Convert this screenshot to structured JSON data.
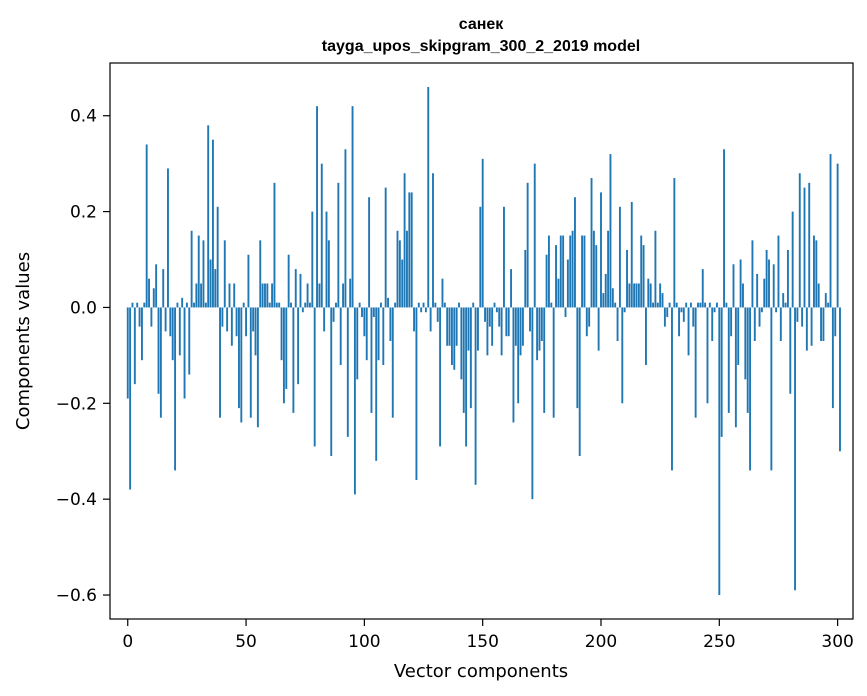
{
  "chart_data": {
    "type": "bar",
    "title": "санек",
    "subtitle": "tayga_upos_skipgram_300_2_2019 model",
    "xlabel": "Vector components",
    "ylabel": "Components values",
    "xlim": [
      -7.5,
      306.5
    ],
    "ylim": [
      -0.65,
      0.51
    ],
    "xticks": [
      0,
      50,
      100,
      150,
      200,
      250,
      300
    ],
    "xtick_labels": [
      "0",
      "50",
      "100",
      "150",
      "200",
      "250",
      "300"
    ],
    "yticks": [
      -0.6,
      -0.4,
      -0.2,
      0.0,
      0.2,
      0.4
    ],
    "ytick_labels": [
      "−0.6",
      "−0.4",
      "−0.2",
      "0.0",
      "0.2",
      "0.4"
    ],
    "bar_color": "#1f77b4",
    "values": [
      -0.19,
      -0.38,
      0.01,
      -0.16,
      0.01,
      -0.04,
      -0.11,
      0.01,
      0.34,
      0.06,
      -0.04,
      0.04,
      0.09,
      -0.18,
      -0.23,
      0.08,
      -0.05,
      0.29,
      -0.06,
      -0.11,
      -0.34,
      0.01,
      -0.1,
      0.02,
      -0.19,
      0.01,
      -0.14,
      0.16,
      0.01,
      0.05,
      0.15,
      0.05,
      0.14,
      0.01,
      0.38,
      0.1,
      0.35,
      0.08,
      0.21,
      -0.23,
      -0.04,
      0.14,
      -0.05,
      0.05,
      -0.08,
      0.05,
      -0.06,
      -0.21,
      -0.24,
      0.01,
      -0.06,
      0.11,
      -0.23,
      -0.05,
      -0.1,
      -0.25,
      0.14,
      0.05,
      0.05,
      0.05,
      0.01,
      0.05,
      0.26,
      0.01,
      0.01,
      -0.11,
      -0.2,
      -0.17,
      0.11,
      0.01,
      -0.22,
      0.08,
      -0.16,
      0.07,
      -0.01,
      0.01,
      0.05,
      0.01,
      0.2,
      -0.29,
      0.42,
      0.05,
      0.3,
      -0.05,
      0.2,
      0.14,
      -0.31,
      -0.03,
      0.01,
      0.26,
      -0.12,
      0.05,
      0.33,
      -0.27,
      0.06,
      0.42,
      -0.39,
      -0.15,
      0.01,
      -0.02,
      -0.06,
      -0.11,
      0.23,
      -0.22,
      -0.02,
      -0.32,
      -0.11,
      0.01,
      -0.12,
      0.25,
      0.02,
      -0.07,
      -0.23,
      0.01,
      0.16,
      0.14,
      0.1,
      0.28,
      0.16,
      0.24,
      0.24,
      -0.05,
      -0.36,
      0.01,
      -0.01,
      0.01,
      -0.01,
      0.46,
      -0.05,
      0.28,
      0.01,
      -0.03,
      -0.29,
      0.06,
      0.01,
      -0.08,
      -0.08,
      -0.12,
      -0.13,
      -0.08,
      0.01,
      -0.15,
      -0.22,
      -0.29,
      -0.09,
      -0.21,
      0.01,
      -0.37,
      -0.09,
      0.21,
      0.31,
      -0.03,
      -0.1,
      -0.04,
      -0.08,
      0.01,
      -0.01,
      -0.04,
      -0.1,
      0.21,
      -0.06,
      -0.06,
      0.08,
      -0.24,
      -0.08,
      -0.2,
      -0.1,
      -0.08,
      0.12,
      0.26,
      -0.05,
      -0.4,
      0.3,
      -0.11,
      -0.09,
      -0.07,
      -0.22,
      0.11,
      0.15,
      0.01,
      -0.23,
      0.13,
      0.06,
      0.15,
      0.15,
      -0.02,
      0.1,
      0.15,
      0.16,
      0.23,
      -0.21,
      -0.31,
      0.15,
      0.15,
      -0.06,
      -0.04,
      0.27,
      0.16,
      0.13,
      -0.09,
      0.24,
      0.03,
      0.07,
      0.16,
      0.32,
      0.04,
      0.01,
      -0.07,
      0.21,
      -0.2,
      -0.01,
      0.12,
      0.05,
      0.22,
      0.05,
      0.05,
      0.05,
      0.15,
      0.13,
      -0.12,
      0.06,
      0.05,
      0.01,
      0.16,
      0.01,
      0.05,
      0.03,
      -0.04,
      -0.02,
      0.01,
      -0.34,
      0.27,
      0.01,
      -0.06,
      -0.01,
      -0.03,
      0.01,
      -0.1,
      0.01,
      -0.04,
      -0.23,
      0.01,
      0.01,
      0.08,
      0.01,
      -0.2,
      0.01,
      -0.07,
      -0.01,
      0.01,
      -0.6,
      -0.27,
      0.33,
      0.01,
      -0.22,
      -0.06,
      0.09,
      -0.25,
      -0.12,
      0.1,
      0.05,
      -0.15,
      -0.22,
      -0.34,
      0.14,
      -0.07,
      0.07,
      -0.04,
      -0.01,
      0.06,
      0.12,
      0.1,
      -0.34,
      0.09,
      -0.01,
      0.15,
      -0.07,
      0.03,
      0.01,
      0.12,
      -0.18,
      0.2,
      -0.59,
      -0.03,
      0.28,
      -0.04,
      0.25,
      -0.09,
      0.26,
      -0.08,
      0.15,
      0.14,
      0.05,
      -0.07,
      -0.07,
      0.03,
      0.01,
      0.32,
      -0.21,
      -0.06,
      0.3,
      -0.3
    ]
  }
}
